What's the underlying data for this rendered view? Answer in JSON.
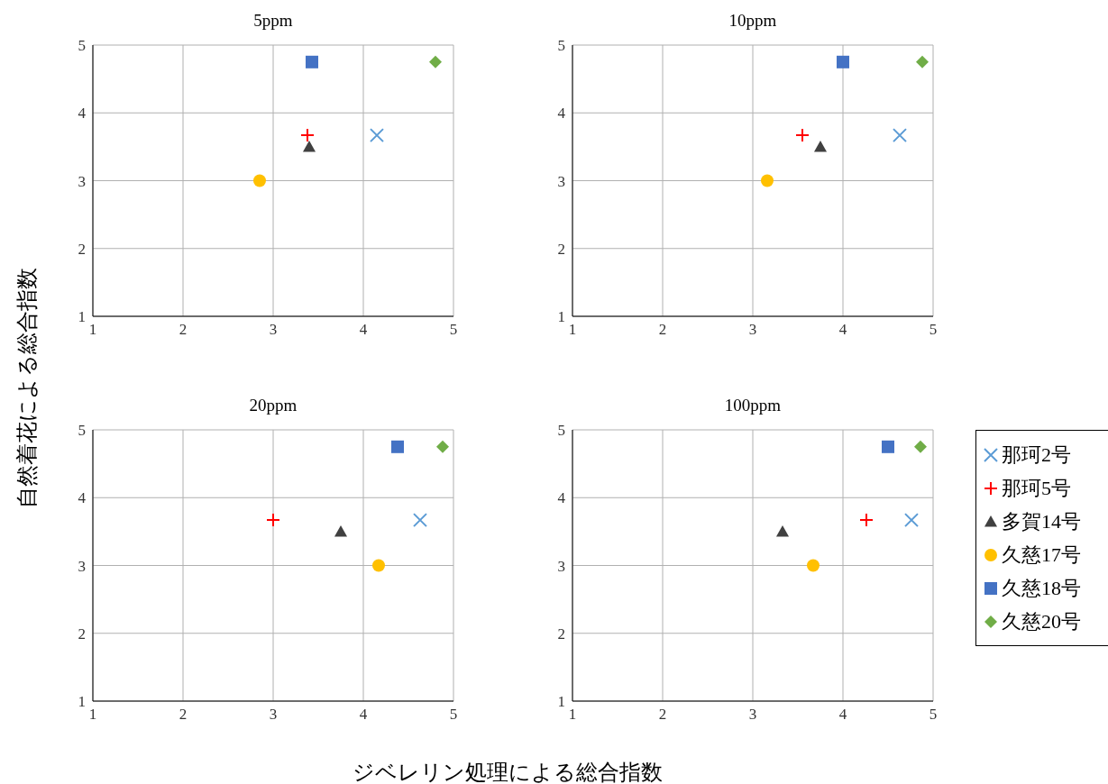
{
  "chart_data": [
    {
      "type": "scatter",
      "title": "5ppm",
      "xlabel": "ジベレリン処理による総合指数",
      "ylabel": "自然着花による総合指数",
      "xlim": [
        1,
        5
      ],
      "xticks": [
        1,
        2,
        3,
        4,
        5
      ],
      "ylim": [
        1,
        5
      ],
      "yticks": [
        1,
        2,
        3,
        4,
        5
      ],
      "grid": true,
      "series": [
        {
          "color": "#5b9bd5",
          "marker": "x",
          "x": [
            4.15
          ],
          "values": [
            3.67
          ]
        },
        {
          "color": "#ff0000",
          "marker": "cross",
          "x": [
            3.38
          ],
          "values": [
            3.67
          ]
        },
        {
          "color": "#404040",
          "marker": "triangle",
          "x": [
            3.4
          ],
          "values": [
            3.5
          ]
        },
        {
          "color": "#ffc000",
          "marker": "circle",
          "x": [
            2.85
          ],
          "values": [
            3.0
          ]
        },
        {
          "color": "#4472c4",
          "marker": "square",
          "x": [
            3.43
          ],
          "values": [
            4.75
          ]
        },
        {
          "color": "#70ad47",
          "marker": "diamond",
          "x": [
            4.8
          ],
          "values": [
            4.75
          ]
        }
      ]
    },
    {
      "type": "scatter",
      "title": "10ppm",
      "xlim": [
        1,
        5
      ],
      "xticks": [
        1,
        2,
        3,
        4,
        5
      ],
      "ylim": [
        1,
        5
      ],
      "yticks": [
        1,
        2,
        3,
        4,
        5
      ],
      "grid": true,
      "series": [
        {
          "color": "#5b9bd5",
          "marker": "x",
          "x": [
            4.63
          ],
          "values": [
            3.67
          ]
        },
        {
          "color": "#ff0000",
          "marker": "cross",
          "x": [
            3.55
          ],
          "values": [
            3.67
          ]
        },
        {
          "color": "#404040",
          "marker": "triangle",
          "x": [
            3.75
          ],
          "values": [
            3.5
          ]
        },
        {
          "color": "#ffc000",
          "marker": "circle",
          "x": [
            3.16
          ],
          "values": [
            3.0
          ]
        },
        {
          "color": "#4472c4",
          "marker": "square",
          "x": [
            4.0
          ],
          "values": [
            4.75
          ]
        },
        {
          "color": "#70ad47",
          "marker": "diamond",
          "x": [
            4.88
          ],
          "values": [
            4.75
          ]
        }
      ]
    },
    {
      "type": "scatter",
      "title": "20ppm",
      "xlim": [
        1,
        5
      ],
      "xticks": [
        1,
        2,
        3,
        4,
        5
      ],
      "ylim": [
        1,
        5
      ],
      "yticks": [
        1,
        2,
        3,
        4,
        5
      ],
      "grid": true,
      "series": [
        {
          "color": "#5b9bd5",
          "marker": "x",
          "x": [
            4.63
          ],
          "values": [
            3.67
          ]
        },
        {
          "color": "#ff0000",
          "marker": "cross",
          "x": [
            3.0
          ],
          "values": [
            3.67
          ]
        },
        {
          "color": "#404040",
          "marker": "triangle",
          "x": [
            3.75
          ],
          "values": [
            3.5
          ]
        },
        {
          "color": "#ffc000",
          "marker": "circle",
          "x": [
            4.17
          ],
          "values": [
            3.0
          ]
        },
        {
          "color": "#4472c4",
          "marker": "square",
          "x": [
            4.38
          ],
          "values": [
            4.75
          ]
        },
        {
          "color": "#70ad47",
          "marker": "diamond",
          "x": [
            4.88
          ],
          "values": [
            4.75
          ]
        }
      ]
    },
    {
      "type": "scatter",
      "title": "100ppm",
      "xlim": [
        1,
        5
      ],
      "xticks": [
        1,
        2,
        3,
        4,
        5
      ],
      "ylim": [
        1,
        5
      ],
      "yticks": [
        1,
        2,
        3,
        4,
        5
      ],
      "grid": true,
      "legend": "right",
      "series": [
        {
          "name": "那珂2号",
          "color": "#5b9bd5",
          "marker": "x",
          "x": [
            4.76
          ],
          "values": [
            3.67
          ]
        },
        {
          "name": "那珂5号",
          "color": "#ff0000",
          "marker": "cross",
          "x": [
            4.26
          ],
          "values": [
            3.67
          ]
        },
        {
          "name": "多賀14号",
          "color": "#404040",
          "marker": "triangle",
          "x": [
            3.33
          ],
          "values": [
            3.5
          ]
        },
        {
          "name": "久慈17号",
          "color": "#ffc000",
          "marker": "circle",
          "x": [
            3.67
          ],
          "values": [
            3.0
          ]
        },
        {
          "name": "久慈18号",
          "color": "#4472c4",
          "marker": "square",
          "x": [
            4.5
          ],
          "values": [
            4.75
          ]
        },
        {
          "name": "久慈20号",
          "color": "#70ad47",
          "marker": "diamond",
          "x": [
            4.86
          ],
          "values": [
            4.75
          ]
        }
      ]
    }
  ]
}
